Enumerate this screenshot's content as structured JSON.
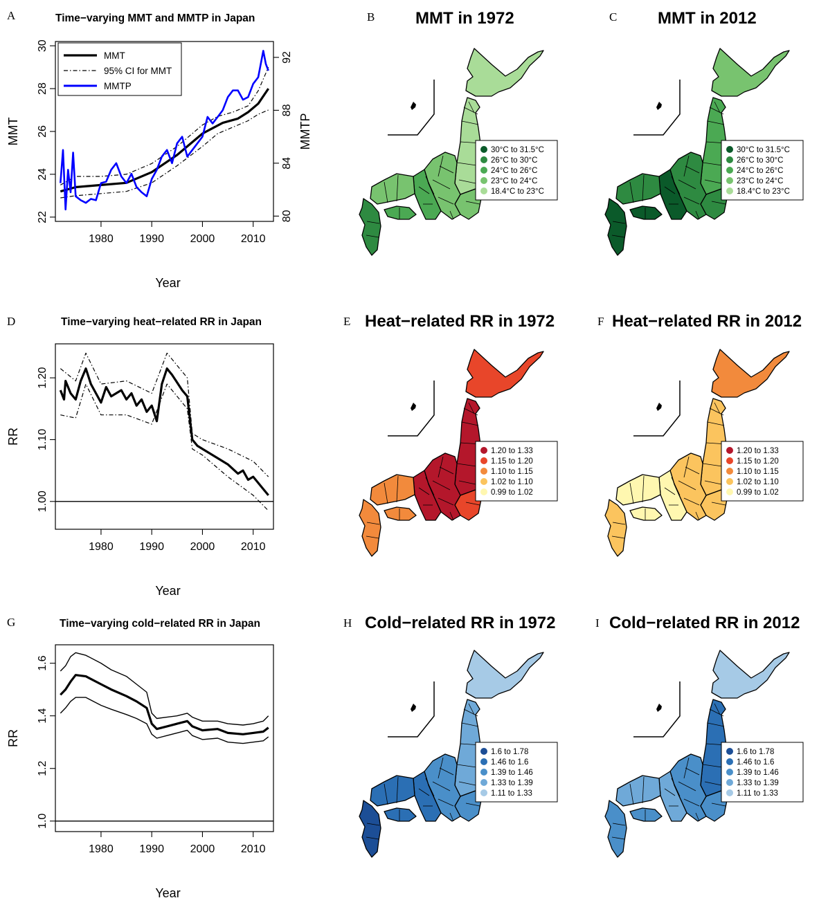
{
  "chart_data": [
    {
      "id": "A",
      "type": "line",
      "panel_label": "A",
      "title": "Time−varying MMT and MMTP in Japan",
      "xlabel": "Year",
      "ylabel": "MMT",
      "y2label": "MMTP",
      "xlim": [
        1971,
        2014
      ],
      "ylim": [
        21.8,
        30.2
      ],
      "y2lim": [
        79.6,
        93.2
      ],
      "xticks": [
        1980,
        1990,
        2000,
        2010
      ],
      "yticks": [
        22,
        24,
        26,
        28,
        30
      ],
      "y2ticks": [
        80,
        84,
        88,
        92
      ],
      "legend": {
        "position": "top-left",
        "entries": [
          "MMT",
          "95% CI for MMT",
          "MMTP"
        ]
      },
      "series": [
        {
          "name": "MMT",
          "axis": "left",
          "style": "solid-thick",
          "color": "#000000",
          "x": [
            1972,
            1975,
            1980,
            1985,
            1990,
            1995,
            2000,
            2004,
            2007,
            2009,
            2011,
            2013
          ],
          "y": [
            23.2,
            23.4,
            23.5,
            23.6,
            24.1,
            24.9,
            25.9,
            26.4,
            26.6,
            26.9,
            27.3,
            28.0
          ]
        },
        {
          "name": "95% CI for MMT",
          "axis": "left",
          "style": "dashdot",
          "color": "#000000",
          "x": [
            1972,
            1975,
            1980,
            1985,
            1990,
            1995,
            2000,
            2003,
            2006,
            2009,
            2011,
            2013
          ],
          "y": [
            23.5,
            23.9,
            23.9,
            24.0,
            24.5,
            25.3,
            26.3,
            26.7,
            26.9,
            27.2,
            27.9,
            29.0
          ]
        },
        {
          "name": "95% CI lower",
          "axis": "left",
          "style": "dashdot",
          "color": "#000000",
          "x": [
            1972,
            1975,
            1980,
            1985,
            1990,
            1995,
            2000,
            2003,
            2006,
            2009,
            2011,
            2013
          ],
          "y": [
            22.9,
            23.0,
            23.1,
            23.2,
            23.6,
            24.4,
            25.3,
            25.9,
            26.2,
            26.5,
            26.8,
            27.0
          ]
        },
        {
          "name": "MMTP",
          "axis": "right",
          "style": "solid",
          "color": "#0000ff",
          "x": [
            1972,
            1972.5,
            1973,
            1973.5,
            1974,
            1974.5,
            1975,
            1976,
            1977,
            1978,
            1979,
            1980,
            1981,
            1982,
            1983,
            1984,
            1985,
            1986,
            1987,
            1988,
            1989,
            1990,
            1991,
            1992,
            1993,
            1994,
            1995,
            1996,
            1997,
            1998,
            1999,
            2000,
            2001,
            2002,
            2003,
            2004,
            2005,
            2006,
            2007,
            2008,
            2009,
            2010,
            2011,
            2012,
            2012.5,
            2013
          ],
          "y": [
            82.5,
            85.0,
            80.5,
            83.5,
            81.8,
            84.8,
            81.5,
            81.2,
            81.0,
            81.3,
            81.2,
            82.5,
            82.6,
            83.5,
            84.0,
            83.0,
            82.5,
            83.2,
            82.2,
            81.8,
            81.5,
            82.8,
            83.5,
            84.5,
            85.0,
            84.0,
            85.5,
            86.0,
            84.5,
            85.0,
            85.5,
            86.0,
            87.5,
            87.0,
            87.5,
            88.0,
            89.0,
            89.5,
            89.5,
            88.8,
            89.0,
            90.0,
            90.5,
            92.5,
            91.5,
            91.0
          ]
        }
      ]
    },
    {
      "id": "D",
      "type": "line",
      "panel_label": "D",
      "title": "Time−varying heat−related RR in Japan",
      "xlabel": "Year",
      "ylabel": "RR",
      "xlim": [
        1971,
        2014
      ],
      "ylim": [
        0.955,
        1.255
      ],
      "xticks": [
        1980,
        1990,
        2000,
        2010
      ],
      "yticks": [
        1.0,
        1.1,
        1.2
      ],
      "ytick_labels": [
        "1.00",
        "1.10",
        "1.20"
      ],
      "reference_line": 1.0,
      "series": [
        {
          "name": "",
          "style": "solid-thick",
          "color": "#000000",
          "x": [
            1972,
            1972.7,
            1973,
            1974,
            1975,
            1976,
            1977,
            1978,
            1980,
            1981,
            1982,
            1984,
            1985,
            1986,
            1987,
            1988,
            1989,
            1990,
            1991,
            1992,
            1993,
            1994,
            1996,
            1997,
            1998,
            1999,
            2000,
            2003,
            2005,
            2007,
            2008,
            2009,
            2010,
            2011,
            2013
          ],
          "y": [
            1.18,
            1.165,
            1.195,
            1.175,
            1.165,
            1.195,
            1.215,
            1.19,
            1.16,
            1.185,
            1.17,
            1.18,
            1.165,
            1.175,
            1.155,
            1.165,
            1.145,
            1.155,
            1.13,
            1.19,
            1.215,
            1.205,
            1.18,
            1.17,
            1.1,
            1.09,
            1.085,
            1.07,
            1.06,
            1.045,
            1.05,
            1.035,
            1.04,
            1.03,
            1.01
          ]
        },
        {
          "name": "",
          "style": "dashdot",
          "color": "#000000",
          "x": [
            1972,
            1975,
            1977,
            1980,
            1985,
            1990,
            1993,
            1997,
            1998,
            2000,
            2005,
            2010,
            2013
          ],
          "y": [
            1.215,
            1.195,
            1.24,
            1.19,
            1.195,
            1.175,
            1.24,
            1.2,
            1.11,
            1.1,
            1.085,
            1.065,
            1.04
          ]
        },
        {
          "name": "",
          "style": "dashdot",
          "color": "#000000",
          "x": [
            1972,
            1975,
            1977,
            1980,
            1985,
            1990,
            1993,
            1997,
            1998,
            2000,
            2005,
            2010,
            2013
          ],
          "y": [
            1.14,
            1.135,
            1.19,
            1.14,
            1.14,
            1.125,
            1.19,
            1.15,
            1.085,
            1.075,
            1.04,
            1.01,
            0.985
          ]
        }
      ]
    },
    {
      "id": "G",
      "type": "line",
      "panel_label": "G",
      "title": "Time−varying cold−related RR in Japan",
      "xlabel": "Year",
      "ylabel": "RR",
      "xlim": [
        1971,
        2014
      ],
      "ylim": [
        0.96,
        1.67
      ],
      "xticks": [
        1980,
        1990,
        2000,
        2010
      ],
      "yticks": [
        1.0,
        1.2,
        1.4,
        1.6
      ],
      "ytick_labels": [
        "1.0",
        "1.2",
        "1.4",
        "1.6"
      ],
      "reference_line": 1.0,
      "series": [
        {
          "name": "",
          "style": "solid-thick",
          "color": "#000000",
          "x": [
            1972,
            1973,
            1974,
            1975,
            1977,
            1980,
            1982,
            1985,
            1987,
            1989,
            1990,
            1991,
            1993,
            1995,
            1997,
            1998,
            2000,
            2003,
            2005,
            2008,
            2010,
            2012,
            2013
          ],
          "y": [
            1.48,
            1.5,
            1.53,
            1.555,
            1.55,
            1.52,
            1.5,
            1.475,
            1.455,
            1.43,
            1.37,
            1.35,
            1.36,
            1.37,
            1.38,
            1.36,
            1.345,
            1.35,
            1.335,
            1.33,
            1.335,
            1.34,
            1.355
          ]
        },
        {
          "name": "",
          "style": "solid",
          "color": "#000000",
          "x": [
            1972,
            1973,
            1974,
            1975,
            1977,
            1980,
            1982,
            1985,
            1987,
            1989,
            1990,
            1991,
            1993,
            1995,
            1997,
            1998,
            2000,
            2003,
            2005,
            2008,
            2010,
            2012,
            2013
          ],
          "y": [
            1.57,
            1.59,
            1.625,
            1.64,
            1.63,
            1.6,
            1.575,
            1.55,
            1.52,
            1.49,
            1.41,
            1.39,
            1.395,
            1.4,
            1.41,
            1.395,
            1.38,
            1.38,
            1.37,
            1.365,
            1.37,
            1.38,
            1.4
          ]
        },
        {
          "name": "",
          "style": "solid",
          "color": "#000000",
          "x": [
            1972,
            1973,
            1974,
            1975,
            1977,
            1980,
            1982,
            1985,
            1987,
            1989,
            1990,
            1991,
            1993,
            1995,
            1997,
            1998,
            2000,
            2003,
            2005,
            2008,
            2010,
            2012,
            2013
          ],
          "y": [
            1.41,
            1.43,
            1.455,
            1.47,
            1.47,
            1.44,
            1.425,
            1.405,
            1.39,
            1.37,
            1.33,
            1.315,
            1.325,
            1.335,
            1.345,
            1.325,
            1.31,
            1.315,
            1.3,
            1.295,
            1.3,
            1.305,
            1.32
          ]
        }
      ]
    }
  ],
  "maps": [
    {
      "id": "B",
      "panel_label": "B",
      "title": "MMT in 1972",
      "palette": "green",
      "legend": [
        "30°C to 31.5°C",
        "26°C to 30°C",
        "24°C to 26°C",
        "23°C to 24°C",
        "18.4°C to 23°C"
      ],
      "legend_colors": [
        "#0b5a2a",
        "#2e8a41",
        "#4ba953",
        "#78c36f",
        "#a9dc98"
      ],
      "region_fills": {
        "hokkaido": 4,
        "tohoku": 4,
        "kanto": 3,
        "chubu": 3,
        "kinki": 2,
        "chugoku": 3,
        "shikoku": 2,
        "kyushu": 1
      }
    },
    {
      "id": "C",
      "panel_label": "C",
      "title": "MMT in 2012",
      "palette": "green",
      "legend": [
        "30°C to 31.5°C",
        "26°C to 30°C",
        "24°C to 26°C",
        "23°C to 24°C",
        "18.4°C to 23°C"
      ],
      "legend_colors": [
        "#0b5a2a",
        "#2e8a41",
        "#4ba953",
        "#78c36f",
        "#a9dc98"
      ],
      "region_fills": {
        "hokkaido": 3,
        "tohoku": 2,
        "kanto": 1,
        "chubu": 1,
        "kinki": 0,
        "chugoku": 1,
        "shikoku": 0,
        "kyushu": 0
      }
    },
    {
      "id": "E",
      "panel_label": "E",
      "title": "Heat−related RR in 1972",
      "palette": "heat",
      "legend": [
        "1.20 to 1.33",
        "1.15 to 1.20",
        "1.10 to 1.15",
        "1.02 to 1.10",
        "0.99 to 1.02"
      ],
      "legend_colors": [
        "#b4172b",
        "#e8462a",
        "#f28a3c",
        "#fbc45e",
        "#fff7b0"
      ],
      "region_fills": {
        "hokkaido": 1,
        "tohoku": 0,
        "kanto": 1,
        "chubu": 0,
        "kinki": 0,
        "chugoku": 2,
        "shikoku": 2,
        "kyushu": 2
      }
    },
    {
      "id": "F",
      "panel_label": "F",
      "title": "Heat−related RR in 2012",
      "palette": "heat",
      "legend": [
        "1.20 to 1.33",
        "1.15 to 1.20",
        "1.10 to 1.15",
        "1.02 to 1.10",
        "0.99 to 1.02"
      ],
      "legend_colors": [
        "#b4172b",
        "#e8462a",
        "#f28a3c",
        "#fbc45e",
        "#fff7b0"
      ],
      "region_fills": {
        "hokkaido": 2,
        "tohoku": 3,
        "kanto": 3,
        "chubu": 3,
        "kinki": 4,
        "chugoku": 4,
        "shikoku": 4,
        "kyushu": 3
      }
    },
    {
      "id": "H",
      "panel_label": "H",
      "title": "Cold−related RR in 1972",
      "palette": "cold",
      "legend": [
        "1.6 to 1.78",
        "1.46 to 1.6",
        "1.39 to 1.46",
        "1.33 to 1.39",
        "1.11 to 1.33"
      ],
      "legend_colors": [
        "#1c4e96",
        "#2b6fb4",
        "#4a8fc9",
        "#6fa9d8",
        "#a6cae6"
      ],
      "region_fills": {
        "hokkaido": 4,
        "tohoku": 3,
        "kanto": 2,
        "chubu": 2,
        "kinki": 1,
        "chugoku": 1,
        "shikoku": 1,
        "kyushu": 0
      }
    },
    {
      "id": "I",
      "panel_label": "I",
      "title": "Cold−related RR in 2012",
      "palette": "cold",
      "legend": [
        "1.6 to 1.78",
        "1.46 to 1.6",
        "1.39 to 1.46",
        "1.33 to 1.39",
        "1.11 to 1.33"
      ],
      "legend_colors": [
        "#1c4e96",
        "#2b6fb4",
        "#4a8fc9",
        "#6fa9d8",
        "#a6cae6"
      ],
      "region_fills": {
        "hokkaido": 4,
        "tohoku": 1,
        "kanto": 2,
        "chubu": 2,
        "kinki": 3,
        "chugoku": 3,
        "shikoku": 2,
        "kyushu": 2
      }
    }
  ]
}
